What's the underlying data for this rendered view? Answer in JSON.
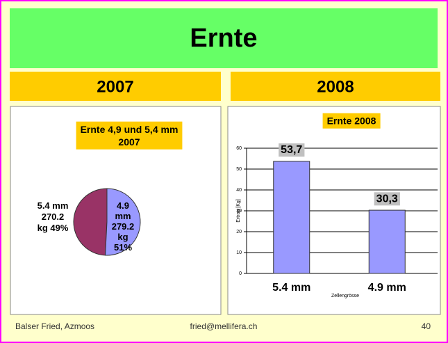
{
  "slide": {
    "title": "Ernte",
    "headers": [
      "2007",
      "2008"
    ],
    "footer": {
      "author": "Balser Fried, Azmoos",
      "email": "fried@mellifera.ch",
      "page": 40
    }
  },
  "chart_data": [
    {
      "type": "pie",
      "title": "Ernte 4,9 und 5,4 mm\n2007",
      "categories": [
        "5.4 mm",
        "4.9 mm"
      ],
      "values": [
        270.2,
        279.2
      ],
      "value_labels": [
        "5.4 mm\n270.2\nkg 49%",
        "4.9\nmm\n279.2\nkg\n51%"
      ],
      "colors": [
        "#993366",
        "#9999ff"
      ]
    },
    {
      "type": "bar",
      "title": "Ernte 2008",
      "categories": [
        "5.4 mm",
        "4.9 mm"
      ],
      "values": [
        53.7,
        30.3
      ],
      "value_labels": [
        "53,7",
        "30,3"
      ],
      "color": "#9999ff",
      "ylim": [
        0,
        60
      ],
      "yticks": [
        0,
        10,
        20,
        30,
        40,
        50,
        60
      ],
      "grid": true,
      "y_label": "Ertrag [Kg]",
      "x_label": "Zellengrösse"
    }
  ]
}
